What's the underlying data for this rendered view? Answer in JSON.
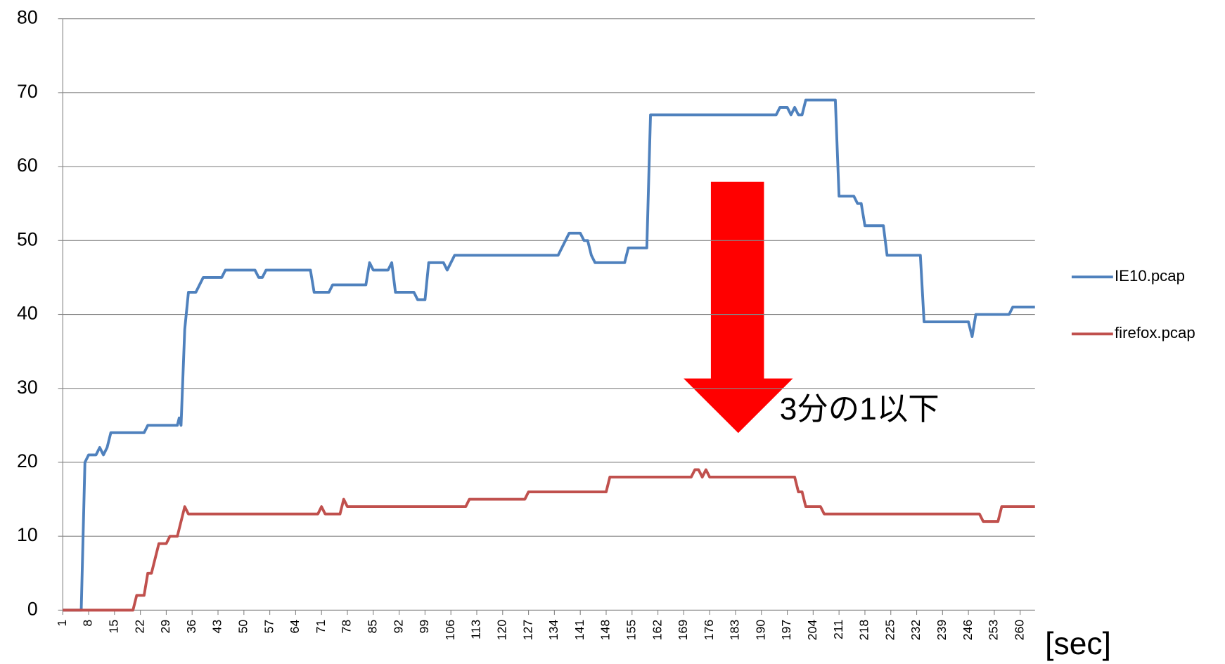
{
  "chart_data": {
    "type": "line",
    "xlim": [
      1,
      264
    ],
    "xticks": [
      1,
      8,
      15,
      22,
      29,
      36,
      43,
      50,
      57,
      64,
      71,
      78,
      85,
      92,
      99,
      106,
      113,
      120,
      127,
      134,
      141,
      148,
      155,
      162,
      169,
      176,
      183,
      190,
      197,
      204,
      211,
      218,
      225,
      232,
      239,
      246,
      253,
      260
    ],
    "ylim": [
      0,
      80
    ],
    "yticks": [
      0,
      10,
      20,
      30,
      40,
      50,
      60,
      70,
      80
    ],
    "grid": true,
    "x_label": "[sec]",
    "annotation": "3分の1以下",
    "legend": "right",
    "series": [
      {
        "name": "IE10.pcap",
        "color": "#4f81bd",
        "x": [
          1,
          6,
          7,
          8,
          10,
          11,
          12,
          13,
          14,
          23,
          24,
          32,
          32.5,
          33,
          34,
          35,
          37,
          39,
          44,
          45,
          53,
          54,
          55,
          56,
          68,
          69,
          73,
          74,
          83,
          84,
          85,
          89,
          90,
          91,
          96,
          97,
          99,
          100,
          104,
          105,
          107,
          135,
          138,
          141,
          142,
          143,
          144,
          145,
          153,
          154,
          159,
          160,
          194,
          195,
          197,
          198,
          199,
          200,
          201,
          202,
          210,
          211,
          215,
          216,
          217,
          218,
          223,
          224,
          233,
          234,
          246,
          247,
          248,
          257,
          258,
          264
        ],
        "values": [
          0,
          0,
          20,
          21,
          21,
          22,
          21,
          22,
          24,
          24,
          25,
          25,
          26,
          25,
          38,
          43,
          43,
          45,
          45,
          46,
          46,
          45,
          45,
          46,
          46,
          43,
          43,
          44,
          44,
          47,
          46,
          46,
          47,
          43,
          43,
          42,
          42,
          47,
          47,
          46,
          48,
          48,
          51,
          51,
          50,
          50,
          48,
          47,
          47,
          49,
          49,
          67,
          67,
          68,
          68,
          67,
          68,
          67,
          67,
          69,
          69,
          56,
          56,
          55,
          55,
          52,
          52,
          48,
          48,
          39,
          39,
          37,
          40,
          40,
          41,
          41
        ]
      },
      {
        "name": "firefox.pcap",
        "color": "#c0504d",
        "x": [
          1,
          20,
          21,
          23,
          24,
          25,
          27,
          29,
          30,
          32,
          34,
          35,
          70,
          71,
          72,
          76,
          77,
          78,
          110,
          111,
          126,
          127,
          148,
          149,
          171,
          172,
          173,
          174,
          175,
          176,
          199,
          200,
          201,
          202,
          206,
          207,
          249,
          250,
          254,
          255,
          264
        ],
        "values": [
          0,
          0,
          2,
          2,
          5,
          5,
          9,
          9,
          10,
          10,
          14,
          13,
          13,
          14,
          13,
          13,
          15,
          14,
          14,
          15,
          15,
          16,
          16,
          18,
          18,
          19,
          19,
          18,
          19,
          18,
          18,
          16,
          16,
          14,
          14,
          13,
          13,
          12,
          12,
          14,
          14
        ]
      }
    ]
  }
}
